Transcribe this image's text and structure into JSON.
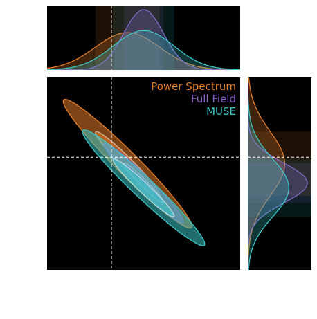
{
  "chart_data": {
    "type": "corner-posterior",
    "description_panels": [
      "top-marginal",
      "joint-2d",
      "right-marginal"
    ],
    "legend": {
      "entries": [
        {
          "label": "Power Spectrum",
          "color": "#e37d2a"
        },
        {
          "label": "Full Field",
          "color": "#8b5fc9"
        },
        {
          "label": "MUSE",
          "color": "#3cc6c6"
        }
      ],
      "placement": "top-right"
    },
    "x_range": [
      -3.0,
      3.0
    ],
    "y_range": [
      -3.0,
      3.0
    ],
    "truth": {
      "x": -1.0,
      "y": 0.5
    },
    "reference_lines": {
      "style": "dashed",
      "color": "#ffffff"
    },
    "background": "#000000",
    "series": [
      {
        "name": "Power Spectrum",
        "color": "#e37d2a",
        "mean": {
          "x": -0.5,
          "y": 0.3
        },
        "std": {
          "x": 1.0,
          "y": 1.0
        },
        "correlation": -0.97,
        "contour_levels_sigma": [
          1,
          2
        ]
      },
      {
        "name": "Full Field",
        "color": "#8b5fc9",
        "mean": {
          "x": 0.0,
          "y": -0.3
        },
        "std": {
          "x": 0.62,
          "y": 0.62
        },
        "correlation": -0.97,
        "contour_levels_sigma": [
          1,
          2
        ]
      },
      {
        "name": "MUSE",
        "color": "#3cc6c6",
        "mean": {
          "x": 0.0,
          "y": -0.45
        },
        "std": {
          "x": 0.95,
          "y": 0.9
        },
        "correlation": -0.97,
        "contour_levels_sigma": [
          1,
          2
        ]
      }
    ]
  }
}
